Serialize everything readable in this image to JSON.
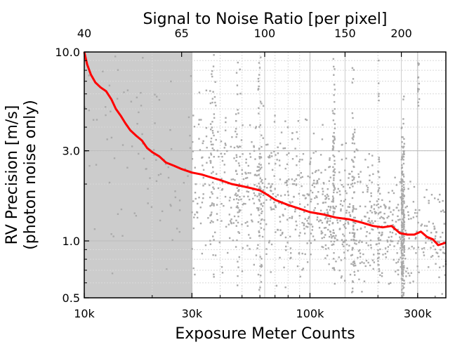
{
  "chart_data": {
    "type": "scatter",
    "top_axis": {
      "label": "Signal to Noise Ratio [per pixel]",
      "ticks": [
        {
          "value": 10000,
          "label": "40"
        },
        {
          "value": 27000,
          "label": "65"
        },
        {
          "value": 63000,
          "label": "100"
        },
        {
          "value": 143000,
          "label": "150"
        },
        {
          "value": 254000,
          "label": "200"
        }
      ]
    },
    "x_axis": {
      "label": "Exposure Meter Counts",
      "scale": "log",
      "range": [
        10000,
        400000
      ],
      "ticks": [
        {
          "value": 10000,
          "label": "10k"
        },
        {
          "value": 30000,
          "label": "30k"
        },
        {
          "value": 100000,
          "label": "100k"
        },
        {
          "value": 300000,
          "label": "300k"
        }
      ]
    },
    "y_axis": {
      "label_line1": "RV Precision [m/s]",
      "label_line2": "(photon noise only)",
      "scale": "log",
      "range": [
        0.5,
        10
      ],
      "ticks": [
        {
          "value": 0.5,
          "label": "0.5"
        },
        {
          "value": 1.0,
          "label": "1.0"
        },
        {
          "value": 3.0,
          "label": "3.0"
        },
        {
          "value": 10.0,
          "label": "10.0"
        }
      ]
    },
    "grid": true,
    "shaded_region": {
      "x_from": 10000,
      "x_to": 30000,
      "color": "#cccccc"
    },
    "series": [
      {
        "kind": "scatter",
        "color": "#aaaaaa",
        "clusters": [
          {
            "x_from": 10000,
            "x_to": 30000,
            "y_center": 3.0,
            "spread": 0.28,
            "count": 90
          },
          {
            "x_from": 30000,
            "x_to": 50000,
            "y_center": 2.1,
            "spread": 0.22,
            "count": 160
          },
          {
            "x_from": 50000,
            "x_to": 80000,
            "y_center": 1.85,
            "spread": 0.2,
            "count": 190
          },
          {
            "x_from": 80000,
            "x_to": 125000,
            "y_center": 1.55,
            "spread": 0.18,
            "count": 210
          },
          {
            "x_from": 125000,
            "x_to": 190000,
            "y_center": 1.35,
            "spread": 0.17,
            "count": 200
          },
          {
            "x_from": 190000,
            "x_to": 255000,
            "y_center": 1.2,
            "spread": 0.15,
            "count": 120
          },
          {
            "x_from": 255000,
            "x_to": 400000,
            "y_center": 1.05,
            "spread": 0.15,
            "count": 120
          },
          {
            "x_from": 126000,
            "x_to": 129000,
            "y_center": 1.5,
            "spread": 0.5,
            "count": 90
          },
          {
            "x_from": 154000,
            "x_to": 158000,
            "y_center": 1.4,
            "spread": 0.5,
            "count": 80
          },
          {
            "x_from": 254000,
            "x_to": 262000,
            "y_center": 1.05,
            "spread": 0.3,
            "count": 260
          },
          {
            "x_from": 59000,
            "x_to": 61000,
            "y_center": 2.0,
            "spread": 0.4,
            "count": 70
          },
          {
            "x_from": 36000,
            "x_to": 38000,
            "y_center": 2.3,
            "spread": 0.4,
            "count": 50
          },
          {
            "x_from": 47000,
            "x_to": 49000,
            "y_center": 2.0,
            "spread": 0.35,
            "count": 40
          },
          {
            "x_from": 200000,
            "x_to": 203000,
            "y_center": 1.4,
            "spread": 0.4,
            "count": 40
          },
          {
            "x_from": 300000,
            "x_to": 305000,
            "y_center": 6.5,
            "spread": 0.08,
            "count": 15
          }
        ]
      },
      {
        "kind": "line",
        "color": "#ff0000",
        "x": [
          10000,
          10300,
          10700,
          11200,
          11800,
          12500,
          13200,
          13800,
          14500,
          15200,
          16000,
          17000,
          18000,
          19000,
          20000,
          21500,
          23000,
          25000,
          27000,
          30000,
          33000,
          36000,
          40000,
          45000,
          50000,
          55000,
          60000,
          65000,
          70000,
          80000,
          90000,
          100000,
          115000,
          130000,
          150000,
          170000,
          190000,
          210000,
          230000,
          250000,
          270000,
          290000,
          310000,
          330000,
          350000,
          370000,
          400000
        ],
        "y": [
          10.0,
          8.6,
          7.6,
          6.9,
          6.5,
          6.2,
          5.6,
          5.0,
          4.6,
          4.2,
          3.85,
          3.6,
          3.4,
          3.1,
          2.95,
          2.8,
          2.6,
          2.5,
          2.4,
          2.3,
          2.25,
          2.18,
          2.1,
          2.0,
          1.95,
          1.9,
          1.85,
          1.75,
          1.65,
          1.55,
          1.48,
          1.42,
          1.38,
          1.33,
          1.3,
          1.25,
          1.2,
          1.18,
          1.2,
          1.1,
          1.08,
          1.08,
          1.12,
          1.05,
          1.02,
          0.95,
          0.98
        ]
      }
    ]
  }
}
